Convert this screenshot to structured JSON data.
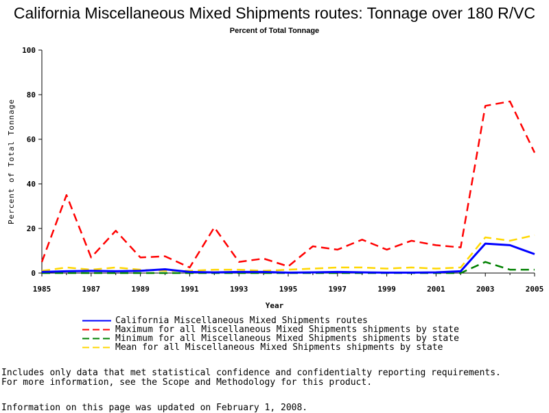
{
  "chart_data": {
    "type": "line",
    "title": "California Miscellaneous Mixed Shipments routes: Tonnage over 180 R/VC",
    "subtitle": "Percent of Total Tonnage",
    "xlabel": "Year",
    "ylabel": "Percent of Total Tonnage",
    "xlim": [
      1985,
      2005
    ],
    "ylim": [
      0,
      100
    ],
    "x_ticks": [
      "1985",
      "1987",
      "1989",
      "1991",
      "1993",
      "1995",
      "1997",
      "1999",
      "2001",
      "2003",
      "2005"
    ],
    "y_ticks": [
      "0",
      "20",
      "40",
      "60",
      "80",
      "100"
    ],
    "x": [
      1985,
      1986,
      1987,
      1988,
      1989,
      1990,
      1991,
      1992,
      1993,
      1994,
      1995,
      1996,
      1997,
      1998,
      1999,
      2000,
      2001,
      2002,
      2003,
      2004,
      2005
    ],
    "series": [
      {
        "name": "California Miscellaneous Mixed Shipments routes",
        "color": "#0000ff",
        "style": "solid",
        "values": [
          0.5,
          0.8,
          1.0,
          0.8,
          1.0,
          1.7,
          0.5,
          0.3,
          0.5,
          0.5,
          0.2,
          0.3,
          0.5,
          0.3,
          0.2,
          0.2,
          0.3,
          0.8,
          13.2,
          12.5,
          8.5
        ]
      },
      {
        "name": "Maximum for all Miscellaneous Mixed Shipments shipments by state",
        "color": "#ff0000",
        "style": "dashed",
        "values": [
          5,
          35,
          7,
          19,
          7,
          7.5,
          2.5,
          20.5,
          5,
          6.5,
          3,
          12,
          10.5,
          15,
          10.5,
          14.5,
          12.5,
          11.5,
          75,
          77,
          54
        ]
      },
      {
        "name": "Minimum for all Miscellaneous Mixed Shipments shipments by state",
        "color": "#008000",
        "style": "dashed",
        "values": [
          0,
          0,
          0,
          0,
          0,
          0,
          0,
          0,
          0,
          0,
          0,
          0,
          0,
          0,
          0,
          0,
          0,
          0,
          5,
          1.5,
          1.5
        ]
      },
      {
        "name": "Mean for all Miscellaneous Mixed Shipments shipments by state",
        "color": "#ffd700",
        "style": "dashed",
        "values": [
          1,
          2.5,
          1.5,
          2.5,
          1.5,
          1,
          1,
          1.5,
          1.5,
          1,
          1.5,
          2,
          2.5,
          2.5,
          2,
          2.5,
          2,
          2.5,
          16,
          14.5,
          17
        ]
      }
    ]
  },
  "footnotes": {
    "line1": "Includes only data that met statistical confidence and confidentialty reporting requirements.",
    "line2": "For more information, see the Scope and Methodology for this product.",
    "updated": "Information on this page was updated on February 1, 2008."
  }
}
